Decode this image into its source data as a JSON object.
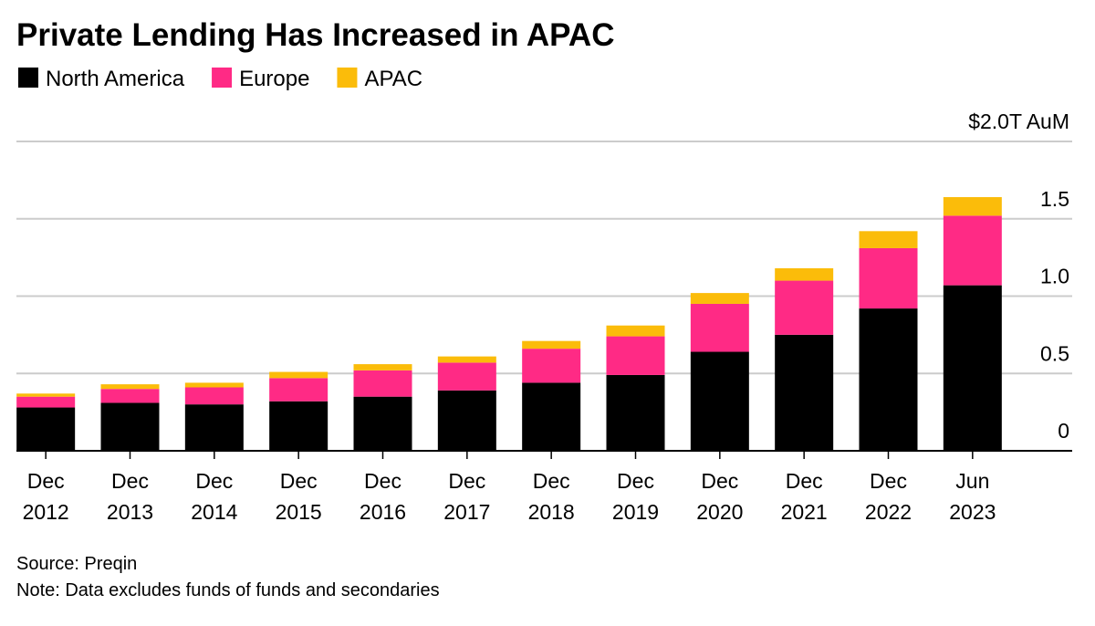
{
  "chart_data": {
    "type": "stacked_bar",
    "title": "Private Lending Has Increased in APAC",
    "categories": [
      "Dec 2012",
      "Dec 2013",
      "Dec 2014",
      "Dec 2015",
      "Dec 2016",
      "Dec 2017",
      "Dec 2018",
      "Dec 2019",
      "Dec 2020",
      "Dec 2021",
      "Dec 2022",
      "Jun 2023"
    ],
    "series": [
      {
        "name": "North America",
        "color": "#000000",
        "values": [
          0.28,
          0.31,
          0.3,
          0.32,
          0.35,
          0.39,
          0.44,
          0.49,
          0.64,
          0.75,
          0.92,
          1.07
        ]
      },
      {
        "name": "Europe",
        "color": "#ff2a85",
        "values": [
          0.07,
          0.09,
          0.11,
          0.15,
          0.17,
          0.18,
          0.22,
          0.25,
          0.31,
          0.35,
          0.39,
          0.45
        ]
      },
      {
        "name": "APAC",
        "color": "#fbbc0a",
        "values": [
          0.02,
          0.03,
          0.03,
          0.04,
          0.04,
          0.04,
          0.05,
          0.07,
          0.07,
          0.08,
          0.11,
          0.12
        ]
      }
    ],
    "ylim": [
      0,
      2.0
    ],
    "yticks": [
      0,
      0.5,
      {
        "value": 1.0,
        "label": "1.0"
      },
      1.5,
      {
        "value": 2.0,
        "label": "$2.0T AuM"
      }
    ],
    "grid": true,
    "source": "Source: Preqin",
    "note": "Note: Data excludes funds of funds and secondaries"
  }
}
